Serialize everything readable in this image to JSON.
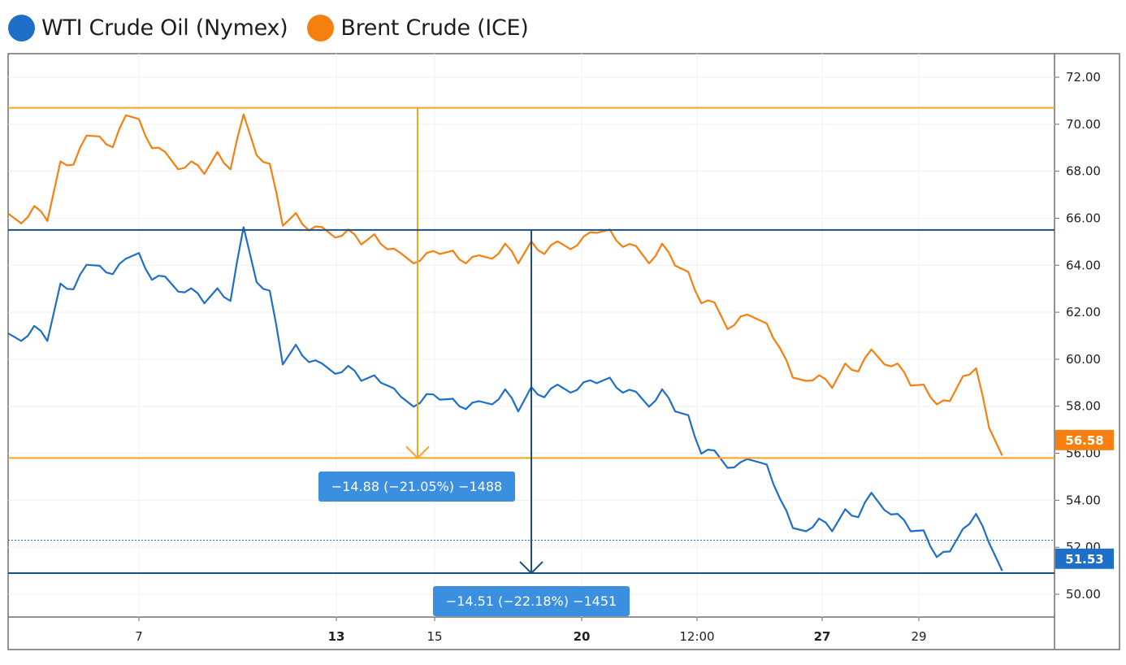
{
  "legend": {
    "wti_label": "WTI Crude Oil (Nymex)",
    "brent_label": "Brent Crude (ICE)"
  },
  "colors": {
    "wti": "#1e6fc8",
    "brent": "#f5800f",
    "measure_brent": "#f7a325",
    "measure_wti": "#1b4f80",
    "badge": "#3a8fe0"
  },
  "chart_data": {
    "type": "line",
    "title": "",
    "xlabel": "",
    "ylabel": "",
    "ylim": [
      49,
      73
    ],
    "y_ticks": [
      "72.00",
      "70.00",
      "68.00",
      "66.00",
      "64.00",
      "62.00",
      "60.00",
      "58.00",
      "56.00",
      "54.00",
      "52.00",
      "50.00"
    ],
    "x_ticks": [
      {
        "label": "7",
        "bold": false
      },
      {
        "label": "13",
        "bold": true
      },
      {
        "label": "15",
        "bold": false
      },
      {
        "label": "20",
        "bold": true
      },
      {
        "label": "12:00",
        "bold": false
      },
      {
        "label": "27",
        "bold": true
      },
      {
        "label": "29",
        "bold": false
      }
    ],
    "grid": true,
    "series": [
      {
        "name": "WTI Crude Oil (Nymex)",
        "last_value": "51.53",
        "values": [
          61.1,
          61.0,
          61.2,
          61.0,
          63.0,
          63.2,
          63.8,
          64.2,
          63.4,
          64.5,
          64.3,
          63.6,
          63.3,
          63.1,
          62.8,
          62.6,
          62.8,
          62.7,
          65.4,
          63.5,
          62.7,
          60.0,
          60.4,
          60.1,
          59.6,
          59.6,
          59.5,
          59.3,
          59.1,
          59.1,
          58.2,
          58.2,
          58.3,
          58.5,
          58.1,
          58.1,
          58.0,
          58.3,
          58.5,
          58.0,
          58.6,
          58.6,
          58.7,
          58.8,
          58.8,
          59.2,
          59.0,
          58.8,
          58.4,
          58.2,
          58.5,
          58.0,
          57.4,
          56.2,
          55.9,
          55.6,
          55.4,
          55.9,
          55.3,
          54.3,
          52.6,
          52.9,
          53.0,
          52.9,
          53.4,
          53.5,
          54.1,
          53.8,
          53.2,
          52.9,
          52.5,
          51.8,
          51.6,
          53.0,
          53.2,
          52.4,
          51.0
        ],
        "point_step": 16.1
      },
      {
        "name": "Brent Crude (ICE)",
        "last_value": "56.58",
        "values": [
          66.2,
          66.0,
          66.3,
          66.1,
          68.2,
          68.5,
          69.3,
          69.7,
          68.8,
          70.6,
          70.0,
          69.2,
          68.6,
          68.3,
          68.2,
          68.1,
          68.6,
          68.3,
          70.2,
          68.9,
          68.1,
          65.9,
          66.0,
          65.7,
          65.4,
          65.4,
          65.3,
          65.1,
          65.1,
          64.9,
          64.3,
          64.3,
          64.3,
          64.7,
          64.4,
          64.3,
          64.2,
          64.5,
          64.7,
          64.3,
          64.8,
          64.7,
          64.8,
          64.9,
          65.0,
          65.6,
          65.3,
          65.0,
          64.6,
          64.3,
          64.7,
          64.2,
          63.5,
          62.6,
          62.2,
          61.5,
          61.6,
          62.0,
          61.3,
          60.7,
          59.0,
          59.3,
          59.1,
          59.0,
          59.6,
          59.7,
          60.2,
          60.0,
          59.6,
          59.1,
          58.7,
          58.3,
          58.0,
          59.5,
          59.4,
          57.3,
          55.9
        ],
        "point_step": 16.1
      }
    ],
    "measurements": [
      {
        "name": "brent-measure",
        "from_value": 70.7,
        "to_value": 55.8,
        "label": "−14.88 (−21.05%) −1488"
      },
      {
        "name": "wti-measure",
        "from_value": 65.5,
        "to_value": 50.9,
        "label": "−14.51 (−22.18%) −1451"
      }
    ],
    "dotted_reference_value": 52.3
  }
}
